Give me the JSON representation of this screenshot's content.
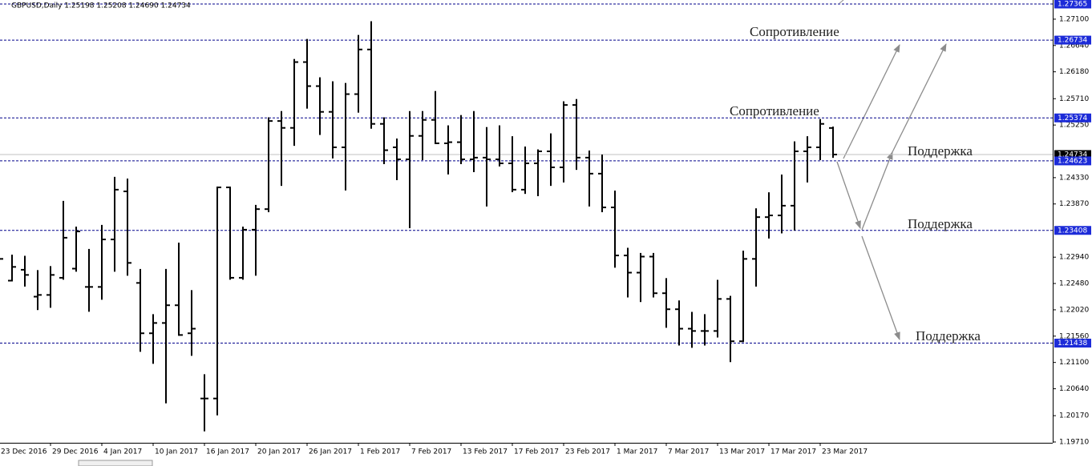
{
  "header": "GBPUSD,Daily  1.25198 1.25208 1.24690 1.24734",
  "chart_data": {
    "type": "ohlc",
    "categories": [
      "23 Dec 2016",
      null,
      null,
      null,
      "29 Dec 2016",
      null,
      null,
      null,
      "4 Jan 2017",
      null,
      null,
      null,
      "10 Jan 2017",
      null,
      null,
      null,
      "16 Jan 2017",
      null,
      null,
      null,
      "20 Jan 2017",
      null,
      null,
      null,
      "26 Jan 2017",
      null,
      null,
      null,
      "1 Feb 2017",
      null,
      null,
      null,
      "7 Feb 2017",
      null,
      null,
      null,
      "13 Feb 2017",
      null,
      null,
      null,
      "17 Feb 2017",
      null,
      null,
      null,
      "23 Feb 2017",
      null,
      null,
      null,
      "1 Mar 2017",
      null,
      null,
      null,
      "7 Mar 2017",
      null,
      null,
      null,
      "13 Mar 2017",
      null,
      null,
      null,
      "17 Mar 2017",
      null,
      null,
      null,
      "23 Mar 2017",
      null
    ],
    "open": [
      1.2284,
      1.2253,
      1.2272,
      1.2225,
      1.2228,
      1.2258,
      1.2274,
      1.2242,
      1.2242,
      1.2325,
      1.2409,
      1.2249,
      1.2161,
      1.2179,
      1.221,
      1.2161,
      1.2047,
      1.2047,
      1.2416,
      1.2258,
      1.2342,
      1.2378,
      1.2532,
      1.252,
      1.2635,
      1.2593,
      1.2548,
      1.2486,
      1.2579,
      1.2657,
      1.2527,
      1.2486,
      1.2465,
      1.2506,
      1.2534,
      1.2493,
      1.2495,
      1.2465,
      1.2468,
      1.2465,
      1.2458,
      1.2412,
      1.2458,
      1.2479,
      1.2451,
      1.256,
      1.2468,
      1.244,
      1.2381,
      1.2297,
      1.2267,
      1.2295,
      1.2231,
      1.2203,
      1.2169,
      1.2165,
      1.2165,
      1.2221,
      1.2147,
      1.2291,
      1.2364,
      1.2367,
      1.2384,
      1.2479,
      1.2486,
      1.25198
    ],
    "high": [
      1.23,
      1.2297,
      1.2295,
      1.227,
      1.2277,
      1.2391,
      1.2346,
      1.2307,
      1.2349,
      1.2433,
      1.243,
      1.2272,
      1.2193,
      1.2272,
      1.2318,
      1.2235,
      1.2088,
      1.2416,
      1.2416,
      1.2346,
      1.2384,
      1.2537,
      1.2548,
      1.2639,
      1.2674,
      1.2607,
      1.26,
      1.2597,
      1.2681,
      1.2705,
      1.2537,
      1.25,
      1.2548,
      1.2548,
      1.2583,
      1.2523,
      1.2541,
      1.2548,
      1.252,
      1.2523,
      1.2504,
      1.2486,
      1.2481,
      1.2509,
      1.2565,
      1.2569,
      1.2479,
      1.2472,
      1.2409,
      1.2309,
      1.23,
      1.23,
      1.2256,
      1.2217,
      1.2197,
      1.2193,
      1.2253,
      1.2225,
      1.2304,
      1.2378,
      1.2406,
      1.2437,
      1.2495,
      1.2504,
      1.2534,
      1.25208
    ],
    "low": [
      1.2231,
      1.2253,
      1.2244,
      1.2203,
      1.2207,
      1.2256,
      1.227,
      1.22,
      1.2221,
      1.227,
      1.2263,
      1.213,
      1.2109,
      1.204,
      1.2158,
      1.2123,
      1.1991,
      1.2019,
      1.2256,
      1.2256,
      1.2263,
      1.2374,
      1.242,
      1.249,
      1.2555,
      1.2509,
      1.2468,
      1.2412,
      1.2548,
      1.252,
      1.2458,
      1.243,
      1.2346,
      1.2465,
      1.2493,
      1.244,
      1.2458,
      1.2444,
      1.2384,
      1.2454,
      1.2409,
      1.2406,
      1.2402,
      1.242,
      1.2426,
      1.2448,
      1.2384,
      1.2374,
      1.2277,
      1.2225,
      1.2217,
      1.2225,
      1.2172,
      1.2141,
      1.2137,
      1.2141,
      1.2155,
      1.2112,
      1.2147,
      1.2244,
      1.2328,
      1.2337,
      1.2342,
      1.2426,
      1.2465,
      1.2469
    ],
    "close": [
      1.2291,
      1.2277,
      1.2263,
      1.2228,
      1.2263,
      1.2328,
      1.2339,
      1.2242,
      1.2325,
      1.2412,
      1.2284,
      1.2161,
      1.2179,
      1.221,
      1.2158,
      1.2169,
      1.2047,
      1.2416,
      1.2258,
      1.2342,
      1.2378,
      1.2532,
      1.252,
      1.2635,
      1.2593,
      1.2548,
      1.2486,
      1.2579,
      1.2657,
      1.2527,
      1.2481,
      1.2465,
      1.2506,
      1.2534,
      1.2493,
      1.2495,
      1.2465,
      1.2468,
      1.2465,
      1.2458,
      1.2412,
      1.2458,
      1.2479,
      1.2451,
      1.256,
      1.2468,
      1.244,
      1.2381,
      1.2297,
      1.2267,
      1.2295,
      1.2231,
      1.2203,
      1.2169,
      1.2165,
      1.2165,
      1.2221,
      1.2147,
      1.2291,
      1.2364,
      1.2367,
      1.2384,
      1.2479,
      1.2486,
      1.2527,
      1.24734
    ],
    "color": "#000000",
    "ylim": [
      1.19696,
      1.27435
    ],
    "yticks": [
      {
        "value": 1.271,
        "label": "1.27100"
      },
      {
        "value": 1.2664,
        "label": "1.26640"
      },
      {
        "value": 1.2618,
        "label": "1.26180"
      },
      {
        "value": 1.2571,
        "label": "1.25710"
      },
      {
        "value": 1.2525,
        "label": "1.25250"
      },
      {
        "value": 1.2433,
        "label": "1.24330"
      },
      {
        "value": 1.2387,
        "label": "1.23870"
      },
      {
        "value": 1.2294,
        "label": "1.22940"
      },
      {
        "value": 1.2248,
        "label": "1.22480"
      },
      {
        "value": 1.2202,
        "label": "1.22020"
      },
      {
        "value": 1.2156,
        "label": "1.21560"
      },
      {
        "value": 1.211,
        "label": "1.21100"
      },
      {
        "value": 1.2064,
        "label": "1.20640"
      },
      {
        "value": 1.2017,
        "label": "1.20170"
      },
      {
        "value": 1.1971,
        "label": "1.19710"
      }
    ],
    "levels": [
      1.27365,
      1.26734,
      1.25374,
      1.24623,
      1.23408,
      1.21438
    ],
    "level_color": "#1c2bd8",
    "current_price": 1.24734,
    "annotations": [
      "Сопротивление",
      "Сопротивление",
      "Поддержка",
      "Поддержка",
      "Поддержка"
    ]
  }
}
